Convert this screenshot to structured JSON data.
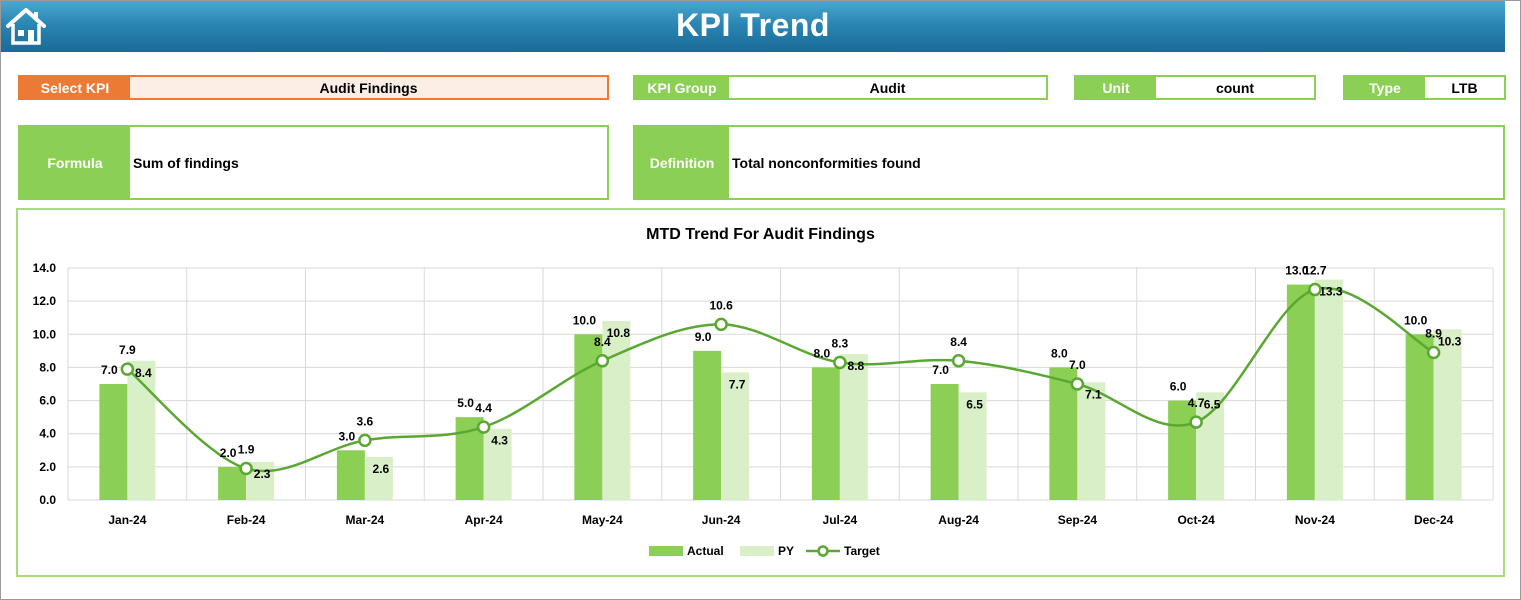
{
  "header": {
    "title": "KPI Trend",
    "home_icon": "home-icon"
  },
  "select_kpi": {
    "label": "Select KPI",
    "value": "Audit Findings"
  },
  "kpi_group": {
    "label": "KPI Group",
    "value": "Audit"
  },
  "unit": {
    "label": "Unit",
    "value": "count"
  },
  "type": {
    "label": "Type",
    "value": "LTB"
  },
  "formula": {
    "label": "Formula",
    "value": "Sum of findings"
  },
  "definition": {
    "label": "Definition",
    "value": "Total nonconformities found"
  },
  "colors": {
    "actual": "#8ccf55",
    "py": "#d8efc8",
    "target": "#5aa832",
    "header": "#2a86b3",
    "select": "#ec7a35"
  },
  "chart_data": {
    "type": "bar",
    "title": "MTD Trend For Audit Findings",
    "categories": [
      "Jan-24",
      "Feb-24",
      "Mar-24",
      "Apr-24",
      "May-24",
      "Jun-24",
      "Jul-24",
      "Aug-24",
      "Sep-24",
      "Oct-24",
      "Nov-24",
      "Dec-24"
    ],
    "series": [
      {
        "name": "Actual",
        "type": "bar",
        "values": [
          7.0,
          2.0,
          3.0,
          5.0,
          10.0,
          9.0,
          8.0,
          7.0,
          8.0,
          6.0,
          13.0,
          10.0
        ]
      },
      {
        "name": "PY",
        "type": "bar",
        "values": [
          8.4,
          2.3,
          2.6,
          4.3,
          10.8,
          7.7,
          8.8,
          6.5,
          7.1,
          6.5,
          13.3,
          10.3
        ]
      },
      {
        "name": "Target",
        "type": "line",
        "values": [
          7.9,
          1.9,
          3.6,
          4.4,
          8.4,
          10.6,
          8.3,
          8.4,
          7.0,
          4.7,
          12.7,
          8.9
        ]
      }
    ],
    "ylim": [
      0,
      14
    ],
    "yticks": [
      "0.0",
      "2.0",
      "4.0",
      "6.0",
      "8.0",
      "10.0",
      "12.0",
      "14.0"
    ],
    "grid": true,
    "legend": "bottom"
  }
}
